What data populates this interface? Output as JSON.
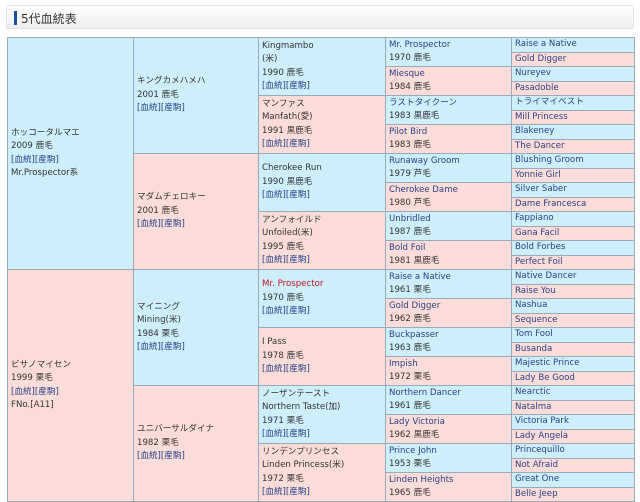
{
  "header": {
    "title": "5代血統表"
  },
  "links": [
    "血統",
    "産駒"
  ],
  "colors": {
    "sire": "#cfeefc",
    "dam": "#fcdcd8",
    "inbreed": "#c0141e",
    "link": "#223f8a"
  },
  "pedigree": [
    [
      {
        "name": "ホッコータルマエ",
        "info": "2009 鹿毛",
        "links": true,
        "extra": "Mr.Prospector系"
      },
      {
        "name": "ビサノマイセン",
        "info": "1999 栗毛",
        "links": true,
        "extra": "FNo.[A11]"
      }
    ],
    [
      {
        "name": "キングカメハメハ",
        "info": "2001 鹿毛",
        "links": true
      },
      {
        "name": "マダムチェロキー",
        "info": "2001 鹿毛",
        "links": true
      },
      {
        "name": "マイニング",
        "name2": "Mining(米)",
        "info": "1984 栗毛",
        "links": true
      },
      {
        "name": "ユニバーサルダイナ",
        "info": "1982 栗毛",
        "links": true
      }
    ],
    [
      {
        "name": "Kingmambo",
        "name2": "(米)",
        "info": "1990 鹿毛",
        "links": true
      },
      {
        "name": "マンファス",
        "name2": "Manfath(愛)",
        "info": "1991 黒鹿毛",
        "links": true
      },
      {
        "name": "Cherokee Run",
        "info": "1990 黒鹿毛",
        "links": true
      },
      {
        "name": "アンフォイルド",
        "name2": "Unfoiled(米)",
        "info": "1995 鹿毛",
        "links": true
      },
      {
        "name": "Mr. Prospector",
        "info": "1970 鹿毛",
        "links": true,
        "inbreed": true
      },
      {
        "name": "I Pass",
        "info": "1978 鹿毛",
        "links": true
      },
      {
        "name": "ノーザンテースト",
        "name2": "Northern Taste(加)",
        "info": "1971 栗毛",
        "links": true
      },
      {
        "name": "リンデンプリンセス",
        "name2": "Linden Princess(米)",
        "info": "1972 栗毛",
        "links": true
      }
    ],
    [
      {
        "name": "Mr. Prospector",
        "info": "1970 鹿毛",
        "inbreed": true
      },
      {
        "name": "Miesque",
        "info": "1984 鹿毛"
      },
      {
        "name": "ラストタイクーン",
        "info": "1983 黒鹿毛"
      },
      {
        "name": "Pilot Bird",
        "info": "1983 鹿毛"
      },
      {
        "name": "Runaway Groom",
        "info": "1979 芦毛"
      },
      {
        "name": "Cherokee Dame",
        "info": "1980 芦毛"
      },
      {
        "name": "Unbridled",
        "info": "1987 鹿毛"
      },
      {
        "name": "Bold Foil",
        "info": "1981 黒鹿毛"
      },
      {
        "name": "Raise a Native",
        "info": "1961 栗毛"
      },
      {
        "name": "Gold Digger",
        "info": "1962 鹿毛"
      },
      {
        "name": "Buckpasser",
        "info": "1963 鹿毛"
      },
      {
        "name": "Impish",
        "info": "1972 栗毛"
      },
      {
        "name": "Northern Dancer",
        "info": "1961 鹿毛"
      },
      {
        "name": "Lady Victoria",
        "info": "1962 黒鹿毛"
      },
      {
        "name": "Prince John",
        "info": "1953 栗毛"
      },
      {
        "name": "Linden Heights",
        "info": "1965 鹿毛"
      }
    ],
    [
      {
        "name": "Raise a Native"
      },
      {
        "name": "Gold Digger"
      },
      {
        "name": "Nureyev"
      },
      {
        "name": "Pasadoble"
      },
      {
        "name": "トライマイベスト"
      },
      {
        "name": "Mill Princess"
      },
      {
        "name": "Blakeney"
      },
      {
        "name": "The Dancer"
      },
      {
        "name": "Blushing Groom"
      },
      {
        "name": "Yonnie Girl"
      },
      {
        "name": "Silver Saber"
      },
      {
        "name": "Dame Francesca"
      },
      {
        "name": "Fappiano"
      },
      {
        "name": "Gana Facil"
      },
      {
        "name": "Bold Forbes"
      },
      {
        "name": "Perfect Foil"
      },
      {
        "name": "Native Dancer"
      },
      {
        "name": "Raise You"
      },
      {
        "name": "Nashua"
      },
      {
        "name": "Sequence"
      },
      {
        "name": "Tom Fool"
      },
      {
        "name": "Busanda"
      },
      {
        "name": "Majestic Prince"
      },
      {
        "name": "Lady Be Good"
      },
      {
        "name": "Nearctic"
      },
      {
        "name": "Natalma"
      },
      {
        "name": "Victoria Park"
      },
      {
        "name": "Lady Angela"
      },
      {
        "name": "Princequillo"
      },
      {
        "name": "Not Afraid"
      },
      {
        "name": "Great One"
      },
      {
        "name": "Belle Jeep"
      }
    ]
  ]
}
